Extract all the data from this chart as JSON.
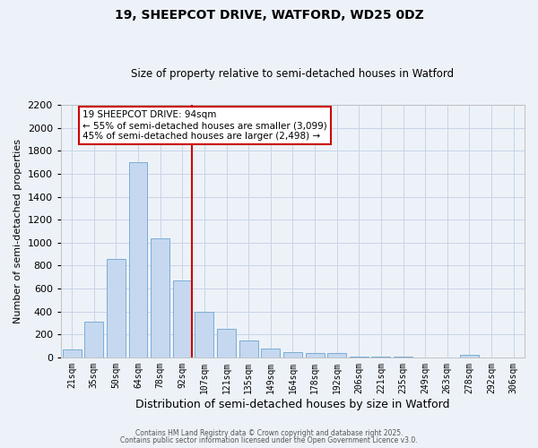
{
  "title": "19, SHEEPCOT DRIVE, WATFORD, WD25 0DZ",
  "subtitle": "Size of property relative to semi-detached houses in Watford",
  "xlabel": "Distribution of semi-detached houses by size in Watford",
  "ylabel": "Number of semi-detached properties",
  "bar_labels": [
    "21sqm",
    "35sqm",
    "50sqm",
    "64sqm",
    "78sqm",
    "92sqm",
    "107sqm",
    "121sqm",
    "135sqm",
    "149sqm",
    "164sqm",
    "178sqm",
    "192sqm",
    "206sqm",
    "221sqm",
    "235sqm",
    "249sqm",
    "263sqm",
    "278sqm",
    "292sqm",
    "306sqm"
  ],
  "bar_values": [
    70,
    310,
    860,
    1700,
    1040,
    670,
    400,
    250,
    150,
    80,
    45,
    40,
    35,
    10,
    5,
    3,
    2,
    2,
    20,
    2,
    2
  ],
  "bar_color": "#c5d8f0",
  "bar_edge_color": "#7badd4",
  "vline_color": "#cc0000",
  "annotation_title": "19 SHEEPCOT DRIVE: 94sqm",
  "annotation_line1": "← 55% of semi-detached houses are smaller (3,099)",
  "annotation_line2": "45% of semi-detached houses are larger (2,498) →",
  "annotation_box_facecolor": "#ffffff",
  "annotation_box_edgecolor": "#cc0000",
  "ylim": [
    0,
    2200
  ],
  "yticks": [
    0,
    200,
    400,
    600,
    800,
    1000,
    1200,
    1400,
    1600,
    1800,
    2000,
    2200
  ],
  "grid_color": "#c8d4e8",
  "background_color": "#edf2f8",
  "footer1": "Contains HM Land Registry data © Crown copyright and database right 2025.",
  "footer2": "Contains public sector information licensed under the Open Government Licence v3.0."
}
